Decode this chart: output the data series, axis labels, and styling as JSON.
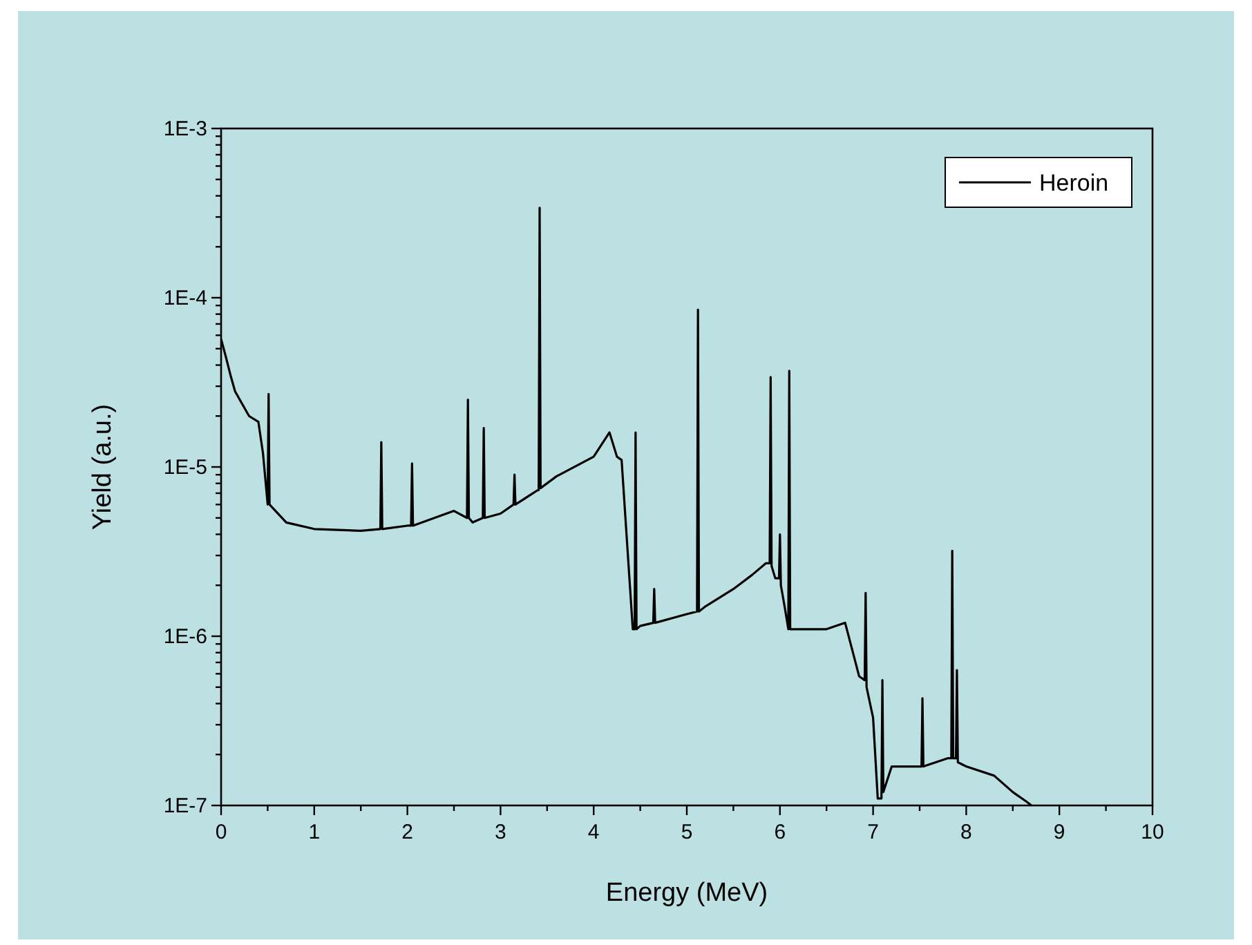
{
  "chart_data": {
    "type": "line",
    "xlabel": "Energy (MeV)",
    "ylabel": "Yield (a.u.)",
    "log": "y",
    "legend": "top right",
    "marker": "none",
    "line_style": "solid",
    "grid": false,
    "xlim": [
      0,
      10
    ],
    "ylim": [
      1e-07,
      0.001
    ],
    "xticks": [
      0,
      {
        "value": 0.5,
        "label": null
      },
      1,
      {
        "value": 1.5,
        "label": null
      },
      2,
      {
        "value": 2.5,
        "label": null
      },
      3,
      {
        "value": 3.5,
        "label": null
      },
      4,
      {
        "value": 4.5,
        "label": null
      },
      5,
      {
        "value": 5.5,
        "label": null
      },
      6,
      {
        "value": 6.5,
        "label": null
      },
      7,
      {
        "value": 7.5,
        "label": null
      },
      8,
      {
        "value": 8.5,
        "label": null
      },
      9,
      {
        "value": 9.5,
        "label": null
      },
      10
    ],
    "yticks": [
      {
        "value": 1e-07,
        "label": "1E-7"
      },
      {
        "value": 2e-07,
        "label": null
      },
      {
        "value": 3e-07,
        "label": null
      },
      {
        "value": 4e-07,
        "label": null
      },
      {
        "value": 5e-07,
        "label": null
      },
      {
        "value": 6e-07,
        "label": null
      },
      {
        "value": 7e-07,
        "label": null
      },
      {
        "value": 8e-07,
        "label": null
      },
      {
        "value": 9e-07,
        "label": null
      },
      {
        "value": 1e-06,
        "label": "1E-6"
      },
      {
        "value": 2e-06,
        "label": null
      },
      {
        "value": 3e-06,
        "label": null
      },
      {
        "value": 4e-06,
        "label": null
      },
      {
        "value": 5e-06,
        "label": null
      },
      {
        "value": 6e-06,
        "label": null
      },
      {
        "value": 7e-06,
        "label": null
      },
      {
        "value": 8e-06,
        "label": null
      },
      {
        "value": 9e-06,
        "label": null
      },
      {
        "value": 1e-05,
        "label": "1E-5"
      },
      {
        "value": 2e-05,
        "label": null
      },
      {
        "value": 3e-05,
        "label": null
      },
      {
        "value": 4e-05,
        "label": null
      },
      {
        "value": 5e-05,
        "label": null
      },
      {
        "value": 6e-05,
        "label": null
      },
      {
        "value": 7e-05,
        "label": null
      },
      {
        "value": 8e-05,
        "label": null
      },
      {
        "value": 9e-05,
        "label": null
      },
      {
        "value": 0.0001,
        "label": "1E-4"
      },
      {
        "value": 0.0002,
        "label": null
      },
      {
        "value": 0.0003,
        "label": null
      },
      {
        "value": 0.0004,
        "label": null
      },
      {
        "value": 0.0005,
        "label": null
      },
      {
        "value": 0.0006,
        "label": null
      },
      {
        "value": 0.0007,
        "label": null
      },
      {
        "value": 0.0008,
        "label": null
      },
      {
        "value": 0.0009,
        "label": null
      },
      {
        "value": 0.001,
        "label": "1E-3"
      }
    ],
    "series": [
      {
        "name": "Heroin",
        "color": "#000000",
        "x": [
          0,
          0.05,
          0.1,
          0.15,
          0.2,
          0.3,
          0.4,
          0.45,
          0.5,
          0.51,
          0.52,
          0.7,
          1.0,
          1.5,
          1.71,
          1.72,
          1.73,
          2.0,
          2.04,
          2.05,
          2.06,
          2.5,
          2.64,
          2.65,
          2.66,
          2.7,
          2.81,
          2.82,
          2.83,
          3.0,
          3.14,
          3.15,
          3.16,
          3.4,
          3.41,
          3.42,
          3.43,
          3.6,
          4.0,
          4.17,
          4.25,
          4.3,
          4.42,
          4.44,
          4.45,
          4.46,
          4.5,
          4.64,
          4.65,
          4.66,
          5.0,
          5.11,
          5.12,
          5.13,
          5.2,
          5.5,
          5.7,
          5.85,
          5.89,
          5.9,
          5.91,
          5.95,
          5.99,
          6.0,
          6.01,
          6.05,
          6.09,
          6.1,
          6.11,
          6.2,
          6.5,
          6.7,
          6.85,
          6.91,
          6.92,
          6.93,
          7.0,
          7.05,
          7.09,
          7.1,
          7.11,
          7.2,
          7.5,
          7.52,
          7.53,
          7.54,
          7.8,
          7.84,
          7.85,
          7.86,
          7.89,
          7.9,
          7.91,
          8.0,
          8.3,
          8.5,
          8.65,
          8.7
        ],
        "values": [
          5.7e-05,
          4.5e-05,
          3.5e-05,
          2.8e-05,
          2.5e-05,
          2e-05,
          1.85e-05,
          1.2e-05,
          6e-06,
          2.7e-05,
          6e-06,
          4.7e-06,
          4.3e-06,
          4.2e-06,
          4.3e-06,
          1.4e-05,
          4.3e-06,
          4.5e-06,
          4.5e-06,
          1.05e-05,
          4.5e-06,
          5.5e-06,
          5e-06,
          2.5e-05,
          5e-06,
          4.7e-06,
          5e-06,
          1.7e-05,
          5e-06,
          5.3e-06,
          6e-06,
          9e-06,
          6e-06,
          7.3e-06,
          7.3e-06,
          0.00034,
          7.5e-06,
          8.8e-06,
          1.15e-05,
          1.6e-05,
          1.15e-05,
          1.1e-05,
          1.1e-06,
          1.1e-06,
          1.6e-05,
          1.1e-06,
          1.15e-06,
          1.2e-06,
          1.9e-06,
          1.2e-06,
          1.35e-06,
          1.4e-06,
          8.5e-05,
          1.4e-06,
          1.5e-06,
          1.9e-06,
          2.3e-06,
          2.7e-06,
          2.7e-06,
          3.4e-05,
          2.6e-06,
          2.2e-06,
          2.2e-06,
          4e-06,
          2e-06,
          1.5e-06,
          1.1e-06,
          3.7e-05,
          1.1e-06,
          1.1e-06,
          1.1e-06,
          1.2e-06,
          5.8e-07,
          5.5e-07,
          1.8e-06,
          5e-07,
          3.3e-07,
          1.1e-07,
          1.1e-07,
          5.5e-07,
          1.2e-07,
          1.7e-07,
          1.7e-07,
          1.7e-07,
          4.3e-07,
          1.7e-07,
          1.9e-07,
          1.9e-07,
          3.2e-06,
          1.9e-07,
          1.9e-07,
          6.3e-07,
          1.8e-07,
          1.7e-07,
          1.5e-07,
          1.2e-07,
          1.05e-07,
          1e-07
        ]
      }
    ]
  }
}
